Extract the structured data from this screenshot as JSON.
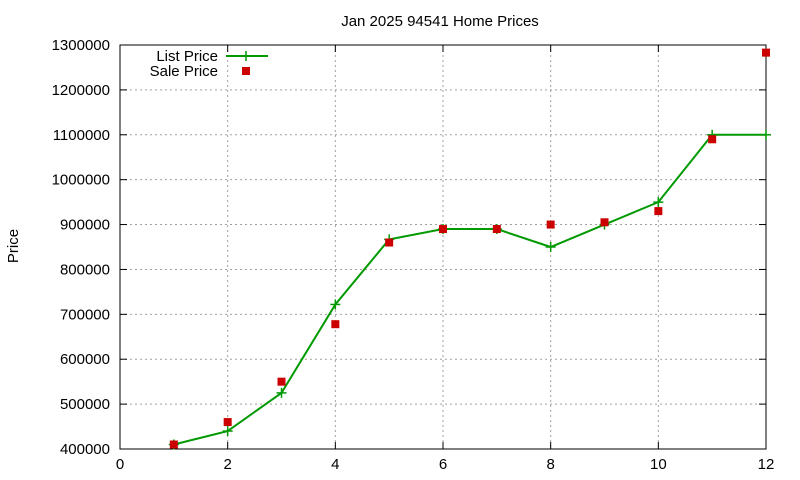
{
  "chart_data": {
    "type": "line",
    "title": "Jan 2025 94541 Home Prices",
    "xlabel": "",
    "ylabel": "Price",
    "xlim": [
      0,
      12
    ],
    "ylim": [
      400000,
      1300000
    ],
    "grid": true,
    "legend": "top-left",
    "x_ticks": [
      "0",
      "2",
      "4",
      "6",
      "8",
      "10",
      "12"
    ],
    "y_ticks": [
      "400000",
      "500000",
      "600000",
      "700000",
      "800000",
      "900000",
      "1000000",
      "1100000",
      "1200000",
      "1300000"
    ],
    "series": [
      {
        "name": "List Price",
        "style": "line-with-plus-markers",
        "color": "#009900",
        "x": [
          1,
          2,
          3,
          4,
          5,
          6,
          7,
          8,
          9,
          10,
          11,
          12
        ],
        "values": [
          410000,
          440000,
          525000,
          722000,
          867000,
          890000,
          890000,
          850000,
          900000,
          950000,
          1100000,
          1100000
        ]
      },
      {
        "name": "Sale Price",
        "style": "square-markers",
        "color": "#cc0000",
        "x": [
          1,
          2,
          3,
          4,
          5,
          6,
          7,
          8,
          9,
          10,
          11,
          12
        ],
        "values": [
          410000,
          460000,
          550000,
          678000,
          860000,
          890000,
          890000,
          900000,
          905000,
          930000,
          1090000,
          1283000
        ]
      }
    ]
  }
}
